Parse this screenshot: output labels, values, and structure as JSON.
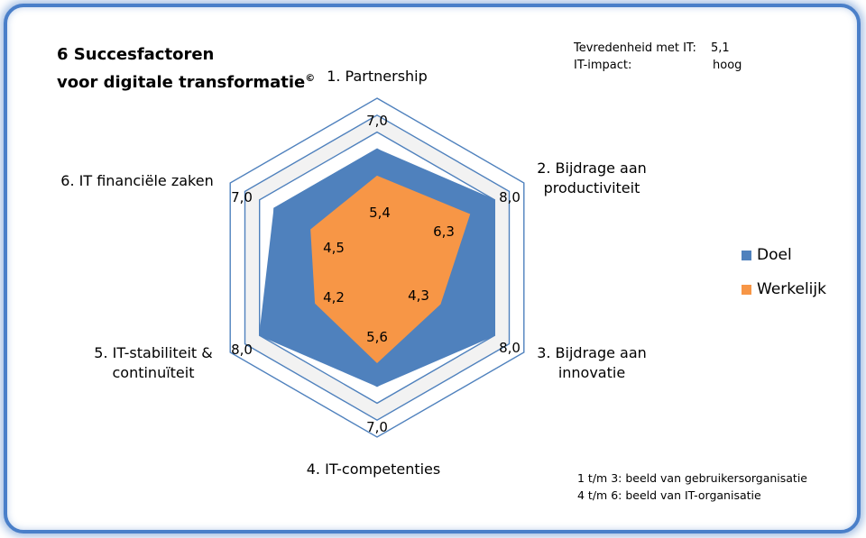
{
  "title_line1": "6 Succesfactoren",
  "title_line2": "voor digitale transformatie",
  "title_mark": "©",
  "info": {
    "row1_label": "Tevredenheid met IT:",
    "row1_value": "5,1",
    "row2_label": "IT-impact:",
    "row2_value": "hoog"
  },
  "footnote": {
    "line1": "1 t/m 3: beeld van gebruikersorganisatie",
    "line2": "4 t/m 6: beeld van IT-organisatie"
  },
  "chart_data": {
    "type": "radar",
    "axes": [
      "1. Partnership",
      "2. Bijdrage aan\nproductiviteit",
      "3. Bijdrage aan\ninnovatie",
      "4. IT-competenties",
      "5. IT-stabiliteit &\ncontinuïteit",
      "6. IT financiële zaken"
    ],
    "rlim": [
      0,
      10
    ],
    "grid_rings": [
      7,
      8,
      9,
      10
    ],
    "series": [
      {
        "name": "Doel",
        "color": "#4f81bd",
        "values": [
          7.0,
          8.0,
          8.0,
          7.0,
          8.0,
          7.0
        ],
        "labels": [
          "7,0",
          "8,0",
          "8,0",
          "7,0",
          "8,0",
          "7,0"
        ]
      },
      {
        "name": "Werkelijk",
        "color": "#f79646",
        "values": [
          5.4,
          6.3,
          4.3,
          5.6,
          4.2,
          4.5
        ],
        "labels": [
          "5,4",
          "6,3",
          "4,3",
          "5,6",
          "4,2",
          "4,5"
        ]
      }
    ],
    "legend_position": "right"
  }
}
